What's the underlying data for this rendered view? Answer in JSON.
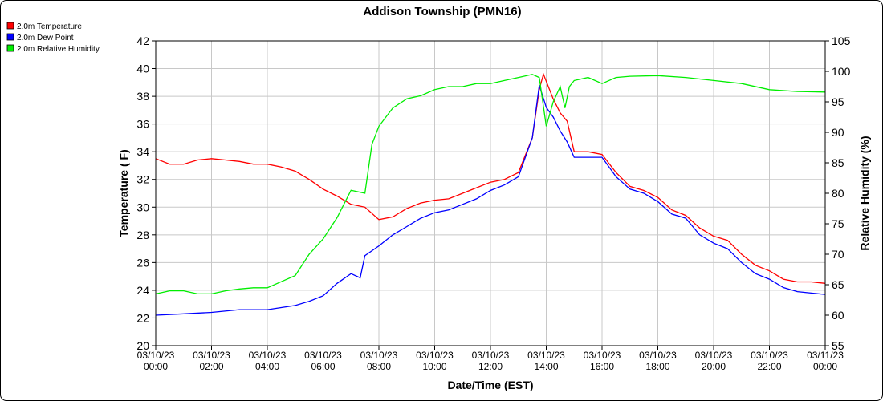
{
  "chart_data": {
    "type": "line",
    "title": "Addison Township (PMN16)",
    "xlabel": "Date/Time (EST)",
    "ylabel": "Temperature ( F)",
    "y2label": "Relative Humidity (%)",
    "xlim": [
      0,
      24
    ],
    "ylim": [
      20,
      42
    ],
    "y2lim": [
      55,
      105
    ],
    "grid": true,
    "legend_position": "top-left",
    "x_ticks": [
      {
        "date": "03/10/23",
        "time": "00:00"
      },
      {
        "date": "03/10/23",
        "time": "02:00"
      },
      {
        "date": "03/10/23",
        "time": "04:00"
      },
      {
        "date": "03/10/23",
        "time": "06:00"
      },
      {
        "date": "03/10/23",
        "time": "08:00"
      },
      {
        "date": "03/10/23",
        "time": "10:00"
      },
      {
        "date": "03/10/23",
        "time": "12:00"
      },
      {
        "date": "03/10/23",
        "time": "14:00"
      },
      {
        "date": "03/10/23",
        "time": "16:00"
      },
      {
        "date": "03/10/23",
        "time": "18:00"
      },
      {
        "date": "03/10/23",
        "time": "20:00"
      },
      {
        "date": "03/10/23",
        "time": "22:00"
      },
      {
        "date": "03/11/23",
        "time": "00:00"
      }
    ],
    "y_ticks": [
      "20",
      "22",
      "24",
      "26",
      "28",
      "30",
      "32",
      "34",
      "36",
      "38",
      "40",
      "42"
    ],
    "y2_ticks": [
      "55",
      "60",
      "65",
      "70",
      "75",
      "80",
      "85",
      "90",
      "95",
      "100",
      "105"
    ],
    "series": [
      {
        "name": "2.0m Temperature",
        "axis": "left",
        "color": "#ff0000",
        "x": [
          0,
          0.5,
          1,
          1.5,
          2,
          2.5,
          3,
          3.5,
          4,
          4.5,
          5,
          5.5,
          6,
          6.5,
          7,
          7.5,
          8,
          8.5,
          9,
          9.5,
          10,
          10.5,
          11,
          11.5,
          12,
          12.5,
          13,
          13.5,
          13.75,
          13.9,
          14.25,
          14.5,
          14.75,
          15,
          15.5,
          16,
          16.5,
          17,
          17.5,
          18,
          18.5,
          19,
          19.5,
          20,
          20.5,
          21,
          21.5,
          22,
          22.5,
          23,
          23.5,
          24
        ],
        "y": [
          33.5,
          33.1,
          33.1,
          33.4,
          33.5,
          33.4,
          33.3,
          33.1,
          33.1,
          32.9,
          32.6,
          32.0,
          31.3,
          30.8,
          30.2,
          30.0,
          29.1,
          29.3,
          29.9,
          30.3,
          30.5,
          30.6,
          31.0,
          31.4,
          31.8,
          32.0,
          32.5,
          35.0,
          38.5,
          39.6,
          37.8,
          36.8,
          36.2,
          34.0,
          34.0,
          33.8,
          32.5,
          31.5,
          31.2,
          30.7,
          29.8,
          29.4,
          28.5,
          27.9,
          27.6,
          26.6,
          25.8,
          25.4,
          24.8,
          24.6,
          24.6,
          24.5
        ]
      },
      {
        "name": "2.0m Dew Point",
        "axis": "left",
        "color": "#0000ff",
        "x": [
          0,
          1,
          2,
          3,
          4,
          5,
          5.5,
          6,
          6.5,
          7,
          7.33,
          7.5,
          8,
          8.5,
          9,
          9.5,
          10,
          10.5,
          11,
          11.5,
          12,
          12.5,
          13,
          13.5,
          13.75,
          14,
          14.25,
          14.5,
          14.75,
          15,
          15.5,
          16,
          16.5,
          17,
          17.5,
          18,
          18.5,
          19,
          19.5,
          20,
          20.5,
          21,
          21.5,
          22,
          22.5,
          23,
          23.5,
          24
        ],
        "y": [
          22.2,
          22.3,
          22.4,
          22.6,
          22.6,
          22.9,
          23.2,
          23.6,
          24.5,
          25.2,
          24.9,
          26.5,
          27.2,
          28.0,
          28.6,
          29.2,
          29.6,
          29.8,
          30.2,
          30.6,
          31.2,
          31.6,
          32.2,
          35.0,
          38.8,
          37.2,
          36.5,
          35.5,
          34.7,
          33.6,
          33.6,
          33.6,
          32.2,
          31.3,
          31.0,
          30.4,
          29.5,
          29.2,
          28.0,
          27.4,
          27.0,
          26.0,
          25.2,
          24.8,
          24.2,
          23.9,
          23.8,
          23.7
        ]
      },
      {
        "name": "2.0m Relative Humidity",
        "axis": "right",
        "color": "#00ee00",
        "x": [
          0,
          0.5,
          1,
          1.5,
          2,
          2.5,
          3,
          3.5,
          4,
          4.5,
          5,
          5.5,
          6,
          6.5,
          7,
          7.5,
          7.75,
          8,
          8.5,
          9,
          9.5,
          10,
          10.5,
          11,
          11.5,
          12,
          12.5,
          13,
          13.5,
          13.75,
          14,
          14.25,
          14.5,
          14.67,
          14.83,
          15,
          15.5,
          16,
          16.5,
          17,
          18,
          19,
          20,
          21,
          22,
          23,
          24
        ],
        "y": [
          63.5,
          64,
          64,
          63.5,
          63.5,
          64,
          64.3,
          64.5,
          64.5,
          65.5,
          66.5,
          70,
          72.5,
          76,
          80.5,
          80,
          88,
          91,
          94,
          95.5,
          96,
          97,
          97.5,
          97.5,
          98,
          98,
          98.5,
          99,
          99.5,
          99,
          91,
          95,
          97.5,
          94,
          97.5,
          98.5,
          99,
          98,
          99,
          99.2,
          99.3,
          99,
          98.5,
          98,
          97,
          96.7,
          96.6
        ]
      }
    ]
  }
}
